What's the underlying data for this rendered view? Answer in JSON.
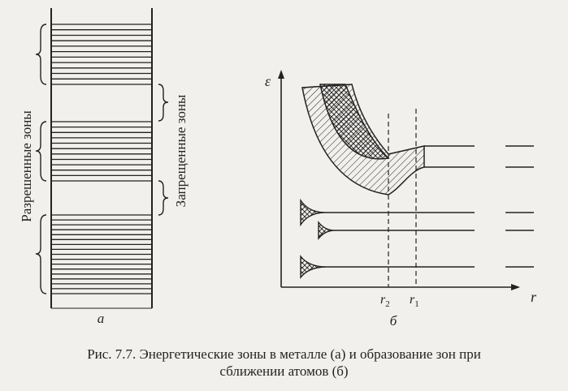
{
  "panel_a": {
    "label": "а",
    "allowed_label": "Разрешенные зоны",
    "forbidden_label": "Запрещенные зоны"
  },
  "panel_b": {
    "label": "б",
    "axis_y": "ε",
    "axis_x": "r",
    "mark_r1": "r",
    "mark_r1_sub": "1",
    "mark_r2": "r",
    "mark_r2_sub": "2"
  },
  "caption": {
    "line1": "Рис. 7.7. Энергетические зоны в металле (а) и образование зон при",
    "line2": "сближении атомов (б)"
  },
  "colors": {
    "ink": "#222222",
    "paper": "#f1f0ec"
  }
}
